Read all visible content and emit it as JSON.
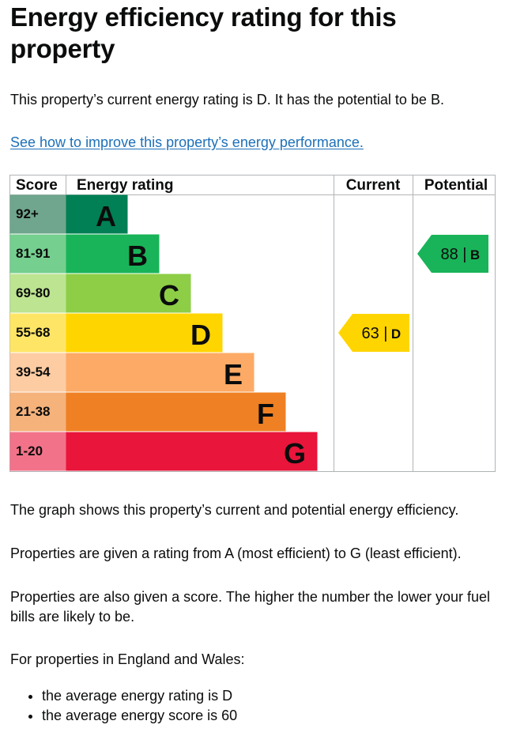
{
  "page": {
    "title": "Energy efficiency rating for this property",
    "intro": "This property’s current energy rating is D. It has the potential to be B.",
    "improve_link": "See how to improve this property’s energy performance.",
    "graph_description": "The graph shows this property’s current and potential energy efficiency.",
    "rating_range_text": "Properties are given a rating from A (most efficient) to G (least efficient).",
    "score_text": "Properties are also given a score. The higher the number the lower your fuel bills are likely to be.",
    "england_wales_text": "For properties in England and Wales:",
    "averages": [
      "the average energy rating is D",
      "the average energy score is 60"
    ]
  },
  "chart_data": {
    "type": "bar",
    "headers": {
      "score": "Score",
      "rating": "Energy rating",
      "current": "Current",
      "potential": "Potential"
    },
    "bands": [
      {
        "letter": "A",
        "range": "92+",
        "color": "#008054",
        "score_color": "#6fa68d"
      },
      {
        "letter": "B",
        "range": "81-91",
        "color": "#19b459",
        "score_color": "#75cf8f"
      },
      {
        "letter": "C",
        "range": "69-80",
        "color": "#8dce46",
        "score_color": "#bde491"
      },
      {
        "letter": "D",
        "range": "55-68",
        "color": "#ffd500",
        "score_color": "#ffe566"
      },
      {
        "letter": "E",
        "range": "39-54",
        "color": "#fcaa65",
        "score_color": "#fdcca3"
      },
      {
        "letter": "F",
        "range": "21-38",
        "color": "#ef8023",
        "score_color": "#f5b27b"
      },
      {
        "letter": "G",
        "range": "1-20",
        "color": "#e9153b",
        "score_color": "#f27389"
      }
    ],
    "current": {
      "score": 63,
      "rating": "D",
      "label": "63 |",
      "color": "#ffd500"
    },
    "potential": {
      "score": 88,
      "rating": "B",
      "label": "88 |",
      "color": "#19b459"
    }
  }
}
